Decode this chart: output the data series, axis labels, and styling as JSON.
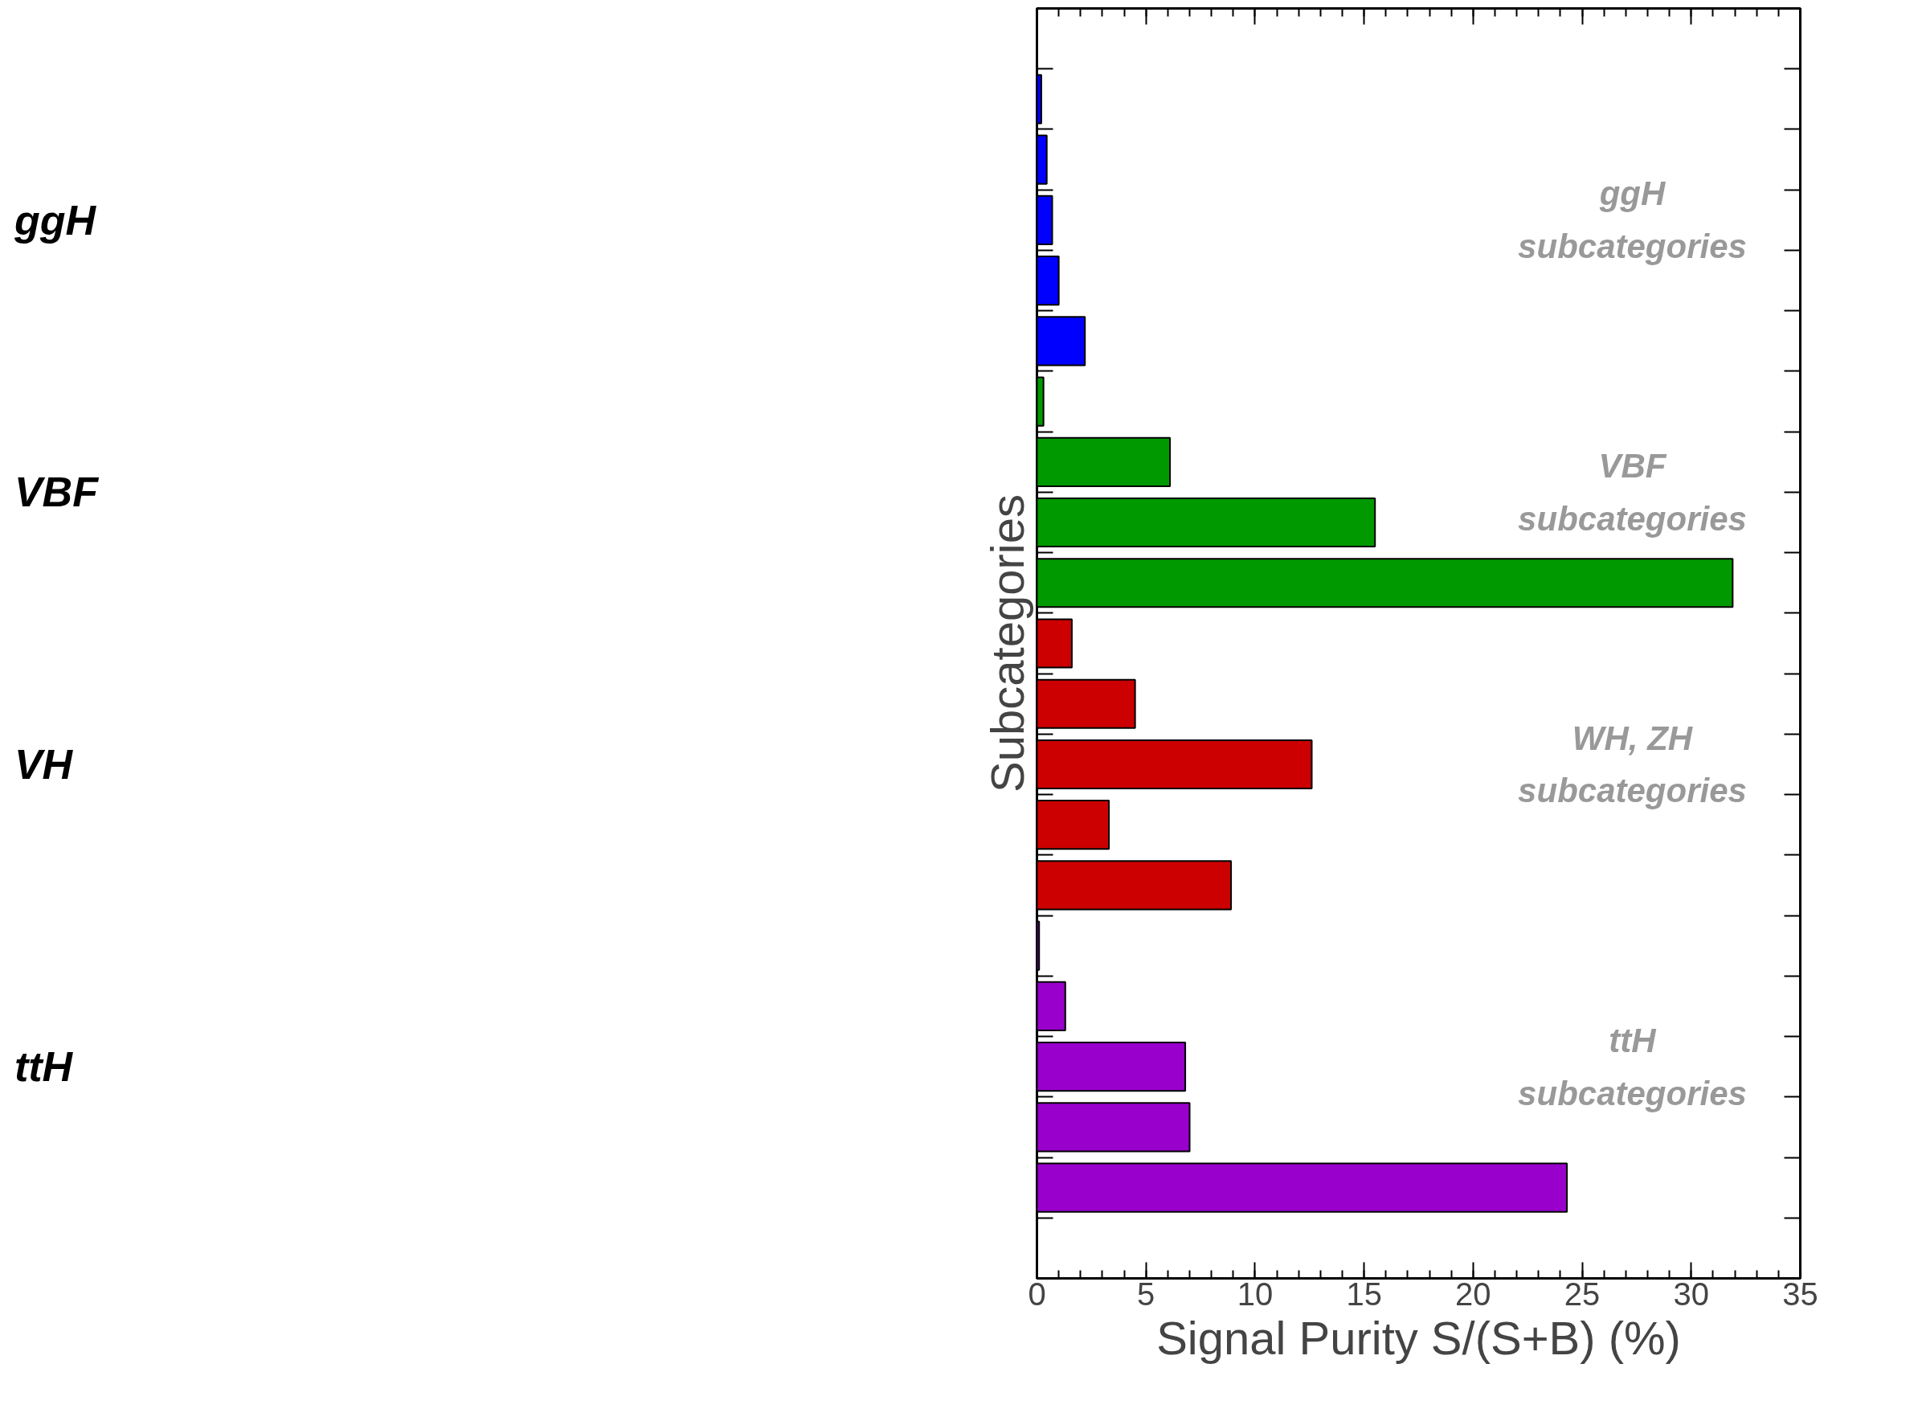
{
  "chart_data": {
    "type": "bar",
    "orientation": "horizontal",
    "categories": [
      null,
      null,
      null,
      null,
      null,
      null,
      null,
      null,
      null,
      null,
      null,
      null,
      null,
      null,
      null,
      null,
      null,
      null,
      null
    ],
    "values": [
      0.2,
      0.45,
      0.7,
      1.0,
      2.2,
      0.3,
      6.1,
      15.5,
      31.9,
      1.6,
      4.5,
      12.6,
      3.3,
      8.9,
      0.1,
      1.3,
      6.8,
      7.0,
      24.3
    ],
    "colors": [
      "#0000ff",
      "#0000ff",
      "#0000ff",
      "#0000ff",
      "#0000ff",
      "#009900",
      "#009900",
      "#009900",
      "#009900",
      "#cc0000",
      "#cc0000",
      "#cc0000",
      "#cc0000",
      "#cc0000",
      "#9900cc",
      "#9900cc",
      "#9900cc",
      "#9900cc",
      "#9900cc"
    ],
    "xlim": [
      0,
      35
    ],
    "xticks": [
      0,
      5,
      10,
      15,
      20,
      25,
      30,
      35
    ],
    "xlabel": "Signal Purity S/(S+B) (%)",
    "ylabel": "Subcategories",
    "grid": false,
    "annotations": [
      "ggH",
      "VBF",
      "VH",
      "ttH",
      "ggH subcategories",
      "VBF subcategories",
      "WH, ZH subcategories",
      "ttH subcategories"
    ]
  }
}
